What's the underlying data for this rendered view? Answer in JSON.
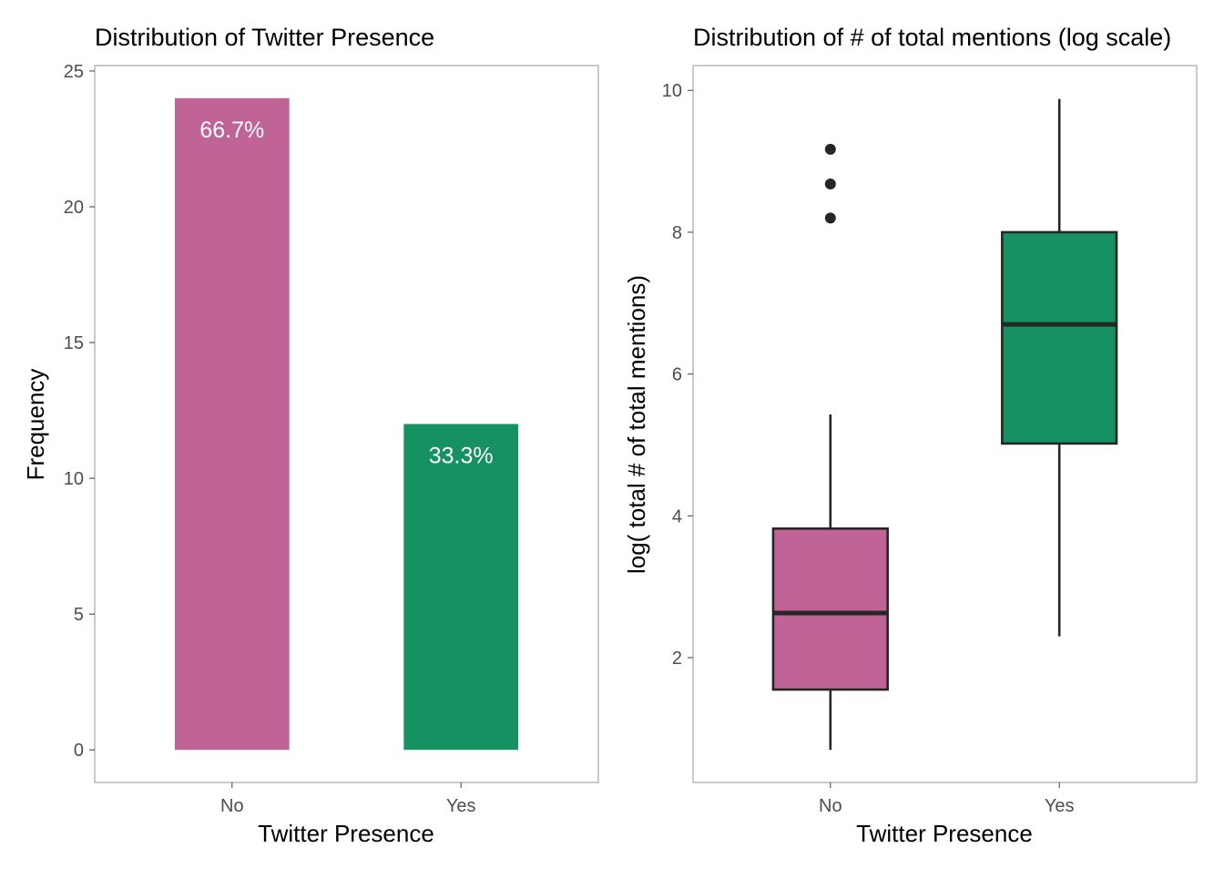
{
  "chart_data": [
    {
      "type": "bar",
      "title": "Distribution of Twitter Presence",
      "xlabel": "Twitter Presence",
      "ylabel": "Frequency",
      "categories": [
        "No",
        "Yes"
      ],
      "values": [
        24,
        12
      ],
      "labels": [
        "66.7%",
        "33.3%"
      ],
      "colors": [
        "#C06396",
        "#159162"
      ],
      "ylim": [
        -1.2,
        25.2
      ],
      "yticks": [
        0,
        5,
        10,
        15,
        20,
        25
      ],
      "grid": false
    },
    {
      "type": "box",
      "title": "Distribution of # of total mentions (log scale)",
      "xlabel": "Twitter Presence",
      "ylabel": "log( total # of total mentions)",
      "categories": [
        "No",
        "Yes"
      ],
      "colors": [
        "#C06396",
        "#159162"
      ],
      "series": [
        {
          "category": "No",
          "whisker_low": 0.7,
          "q1": 1.55,
          "median": 2.63,
          "q3": 3.82,
          "whisker_high": 5.43,
          "outliers": [
            8.2,
            8.68,
            9.17
          ]
        },
        {
          "category": "Yes",
          "whisker_low": 2.3,
          "q1": 5.02,
          "median": 6.7,
          "q3": 8.0,
          "whisker_high": 9.88,
          "outliers": []
        }
      ],
      "ylim": [
        0.24,
        10.35
      ],
      "yticks": [
        2,
        4,
        6,
        8,
        10
      ],
      "grid": false
    }
  ]
}
